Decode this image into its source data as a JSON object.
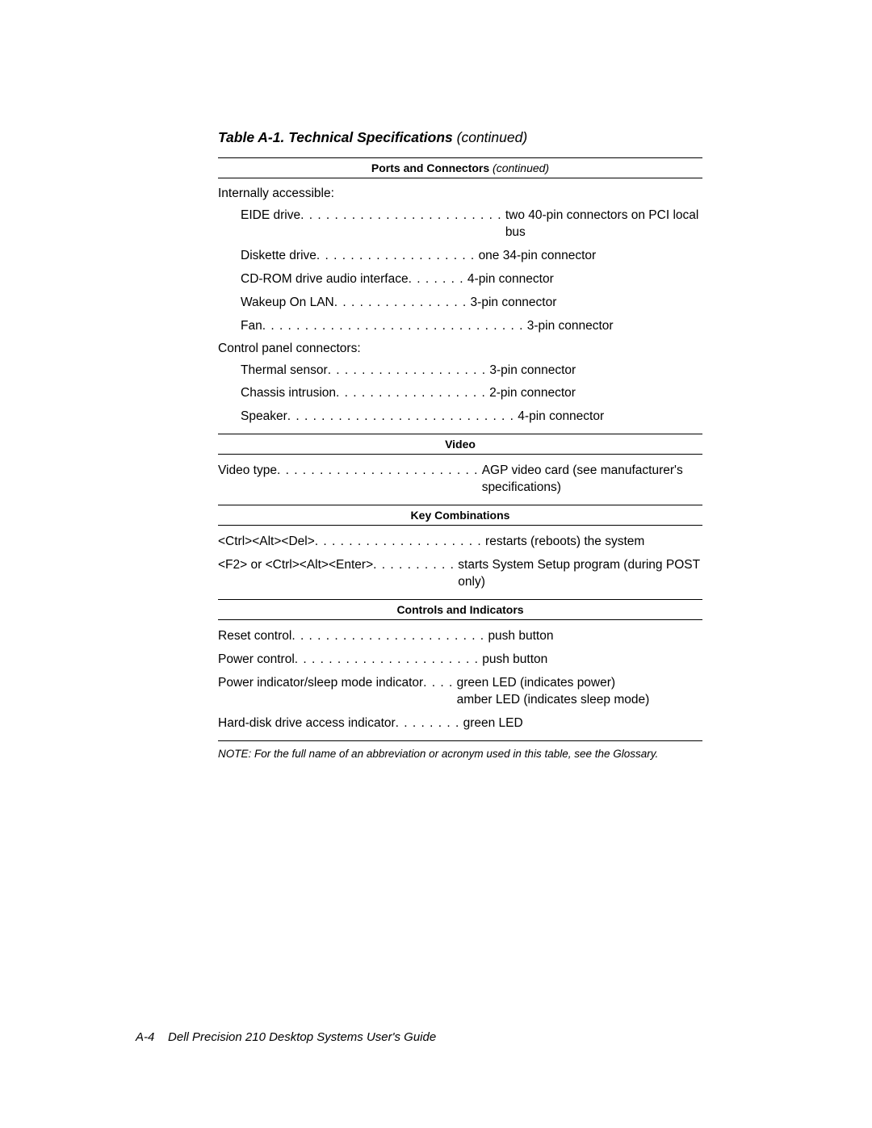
{
  "title": {
    "main": "Table A-1.  Technical Specifications",
    "cont": " (continued)"
  },
  "sections": [
    {
      "header": "Ports and Connectors",
      "header_cont": " (continued)",
      "groups": [
        {
          "label": "Internally accessible:",
          "rows": [
            {
              "label": "EIDE drive",
              "dots": ". . . . . . . . . . . . . . . . . . . . . . . .",
              "value": "two 40-pin connectors on PCI local bus"
            },
            {
              "label": "Diskette drive",
              "dots": " . . . . . . . . . . . . . . . . . . .",
              "value": "one 34-pin connector"
            },
            {
              "label": "CD-ROM drive audio interface",
              "dots": ". . . . . . .",
              "value": "4-pin connector"
            },
            {
              "label": "Wakeup On LAN",
              "dots": "  . . . . . . . . . . . . . . . .",
              "value": "3-pin connector"
            },
            {
              "label": "Fan",
              "dots": ". . . . . . . . . . . . . . . . . . . . . . . . . . . . . . .",
              "value": "3-pin connector"
            }
          ]
        },
        {
          "label": "Control panel connectors:",
          "rows": [
            {
              "label": "Thermal sensor",
              "dots": " . . . . . . . . . . . . . . . . . . .",
              "value": "3-pin connector"
            },
            {
              "label": "Chassis intrusion",
              "dots": ". . . . . . . . . . . . . . . . . .",
              "value": "2-pin connector"
            },
            {
              "label": "Speaker",
              "dots": ". . . . . . . . . . . . . . . . . . . . . . . . . . .",
              "value": "4-pin connector"
            }
          ]
        }
      ]
    },
    {
      "header": "Video",
      "groups": [
        {
          "rows": [
            {
              "label": "Video type",
              "dots": " . . . . . . . . . . . . . . . . . . . . . . . .",
              "value": "AGP video card (see manufacturer's specifications)"
            }
          ]
        }
      ]
    },
    {
      "header": "Key Combinations",
      "groups": [
        {
          "rows": [
            {
              "label": "<Ctrl><Alt><Del>",
              "dots": "  . . . . . . . . . . . . . . . . . . . .",
              "value": "restarts (reboots) the system"
            },
            {
              "label": "<F2> or <Ctrl><Alt><Enter>",
              "dots": " . . . . . . . . . .",
              "value": "starts System Setup program (during POST only)"
            }
          ]
        }
      ]
    },
    {
      "header": "Controls and Indicators",
      "last": true,
      "groups": [
        {
          "rows": [
            {
              "label": "Reset control",
              "dots": ". . . . . . . . . . . . . . . . . . . . . . .",
              "value": "push button"
            },
            {
              "label": "Power control",
              "dots": "  . . . . . . . . . . . . . . . . . . . . . .",
              "value": "push button"
            },
            {
              "label": "Power indicator/sleep mode indicator",
              "dots": " . . . .",
              "value": "green LED (indicates power)\namber LED (indicates sleep mode)"
            },
            {
              "label": "Hard-disk drive access indicator",
              "dots": " . . . . . . . .",
              "value": "green LED"
            }
          ]
        }
      ]
    }
  ],
  "note": "NOTE:  For the full name of an abbreviation or acronym used in this table, see the Glossary.",
  "footer": {
    "page": "A-4",
    "text": "Dell Precision 210 Desktop Systems User's Guide"
  }
}
